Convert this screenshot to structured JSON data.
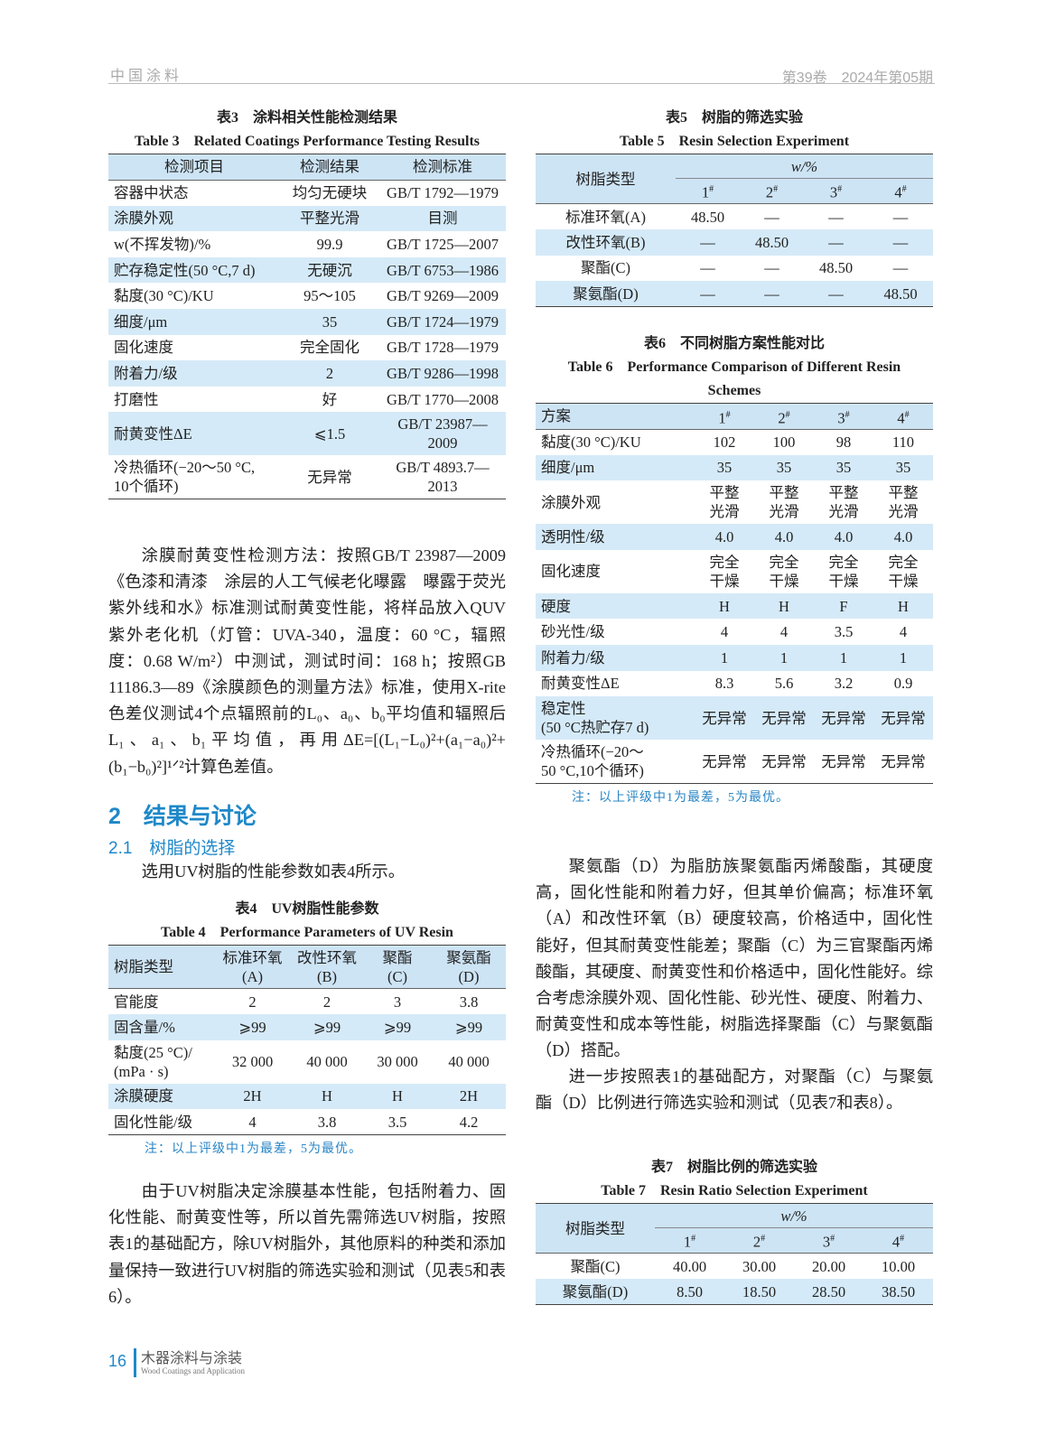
{
  "header": {
    "journal": "中国涂料",
    "issue": "第39卷　2024年第05期"
  },
  "table3": {
    "caption_cn": "表3　涂料相关性能检测结果",
    "caption_en": "Table 3　Related Coatings Performance Testing Results",
    "columns": [
      "检测项目",
      "检测结果",
      "检测标准"
    ],
    "rows": [
      [
        "容器中状态",
        "均匀无硬块",
        "GB/T 1792—1979"
      ],
      [
        "涂膜外观",
        "平整光滑",
        "目测"
      ],
      [
        "w(不挥发物)/%",
        "99.9",
        "GB/T 1725—2007"
      ],
      [
        "贮存稳定性(50 °C,7 d)",
        "无硬沉",
        "GB/T 6753—1986"
      ],
      [
        "黏度(30 °C)/KU",
        "95～105",
        "GB/T 9269—2009"
      ],
      [
        "细度/μm",
        "35",
        "GB/T 1724—1979"
      ],
      [
        "固化速度",
        "完全固化",
        "GB/T 1728—1979"
      ],
      [
        "附着力/级",
        "2",
        "GB/T 9286—1998"
      ],
      [
        "打磨性",
        "好",
        "GB/T 1770—2008"
      ],
      [
        "耐黄变性ΔE",
        "⩽1.5",
        "GB/T 23987—\n2009"
      ],
      [
        "冷热循环(−20～50 °C,\n10个循环)",
        "无异常",
        "GB/T 4893.7—\n2013"
      ]
    ]
  },
  "para1": "涂膜耐黄变性检测方法：按照GB/T 23987—2009《色漆和清漆　涂层的人工气候老化曝露　曝露于荧光紫外线和水》标准测试耐黄变性能，将样品放入QUV紫外老化机（灯管：UVA-340，温度：60 °C，辐照度：0.68 W/m²）中测试，测试时间：168 h；按照GB 11186.3—89《涂膜颜色的测量方法》标准，使用X-rite色差仪测试4个点辐照前的L₀、a₀、b₀平均值和辐照后L₁、a₁、b₁平均值，再用ΔE=[(L₁−L₀)²+(a₁−a₀)²+(b₁−b₀)²]¹ᐟ²计算色差值。",
  "section2": {
    "title": "2　结果与讨论",
    "sub": "2.1　树脂的选择",
    "intro": "选用UV树脂的性能参数如表4所示。"
  },
  "table4": {
    "caption_cn": "表4　UV树脂性能参数",
    "caption_en": "Table 4　Performance Parameters of UV Resin",
    "columns": [
      "树脂类型",
      "标准环氧\n(A)",
      "改性环氧\n(B)",
      "聚酯\n(C)",
      "聚氨酯\n(D)"
    ],
    "rows": [
      [
        "官能度",
        "2",
        "2",
        "3",
        "3.8"
      ],
      [
        "固含量/%",
        "⩾99",
        "⩾99",
        "⩾99",
        "⩾99"
      ],
      [
        "黏度(25 °C)/\n(mPa · s)",
        "32 000",
        "40 000",
        "30 000",
        "40 000"
      ],
      [
        "涂膜硬度",
        "2H",
        "H",
        "H",
        "2H"
      ],
      [
        "固化性能/级",
        "4",
        "3.8",
        "3.5",
        "4.2"
      ]
    ],
    "note": "注：以上评级中1为最差，5为最优。"
  },
  "para2": "由于UV树脂决定涂膜基本性能，包括附着力、固化性能、耐黄变性等，所以首先需筛选UV树脂，按照表1的基础配方，除UV树脂外，其他原料的种类和添加量保持一致进行UV树脂的筛选实验和测试（见表5和表6）。",
  "table5": {
    "caption_cn": "表5　树脂的筛选实验",
    "caption_en": "Table 5　Resin Selection Experiment",
    "col_head": "树脂类型",
    "unit": "w/%",
    "schemes": [
      "1#",
      "2#",
      "3#",
      "4#"
    ],
    "rows": [
      [
        "标准环氧(A)",
        "48.50",
        "—",
        "—",
        "—"
      ],
      [
        "改性环氧(B)",
        "—",
        "48.50",
        "—",
        "—"
      ],
      [
        "聚酯(C)",
        "—",
        "—",
        "48.50",
        "—"
      ],
      [
        "聚氨酯(D)",
        "—",
        "—",
        "—",
        "48.50"
      ]
    ]
  },
  "table6": {
    "caption_cn": "表6　不同树脂方案性能对比",
    "caption_en": "Table 6　Performance Comparison of Different Resin Schemes",
    "columns": [
      "方案",
      "1#",
      "2#",
      "3#",
      "4#"
    ],
    "rows": [
      [
        "黏度(30 °C)/KU",
        "102",
        "100",
        "98",
        "110"
      ],
      [
        "细度/μm",
        "35",
        "35",
        "35",
        "35"
      ],
      [
        "涂膜外观",
        "平整\n光滑",
        "平整\n光滑",
        "平整\n光滑",
        "平整\n光滑"
      ],
      [
        "透明性/级",
        "4.0",
        "4.0",
        "4.0",
        "4.0"
      ],
      [
        "固化速度",
        "完全\n干燥",
        "完全\n干燥",
        "完全\n干燥",
        "完全\n干燥"
      ],
      [
        "硬度",
        "H",
        "H",
        "F",
        "H"
      ],
      [
        "砂光性/级",
        "4",
        "4",
        "3.5",
        "4"
      ],
      [
        "附着力/级",
        "1",
        "1",
        "1",
        "1"
      ],
      [
        "耐黄变性ΔE",
        "8.3",
        "5.6",
        "3.2",
        "0.9"
      ],
      [
        "稳定性\n(50 °C热贮存7 d)",
        "无异常",
        "无异常",
        "无异常",
        "无异常"
      ],
      [
        "冷热循环(−20～\n50 °C,10个循环)",
        "无异常",
        "无异常",
        "无异常",
        "无异常"
      ]
    ],
    "note": "注：以上评级中1为最差，5为最优。"
  },
  "para3": "聚氨酯（D）为脂肪族聚氨酯丙烯酸酯，其硬度高，固化性能和附着力好，但其单价偏高；标准环氧（A）和改性环氧（B）硬度较高，价格适中，固化性能好，但其耐黄变性能差；聚酯（C）为三官聚酯丙烯酸酯，其硬度、耐黄变性和价格适中，固化性能好。综合考虑涂膜外观、固化性能、砂光性、硬度、附着力、耐黄变性和成本等性能，树脂选择聚酯（C）与聚氨酯（D）搭配。",
  "para4": "进一步按照表1的基础配方，对聚酯（C）与聚氨酯（D）比例进行筛选实验和测试（见表7和表8）。",
  "table7": {
    "caption_cn": "表7　树脂比例的筛选实验",
    "caption_en": "Table 7　Resin Ratio Selection Experiment",
    "col_head": "树脂类型",
    "unit": "w/%",
    "schemes": [
      "1#",
      "2#",
      "3#",
      "4#"
    ],
    "rows": [
      [
        "聚酯(C)",
        "40.00",
        "30.00",
        "20.00",
        "10.00"
      ],
      [
        "聚氨酯(D)",
        "8.50",
        "18.50",
        "28.50",
        "38.50"
      ]
    ]
  },
  "footer": {
    "page": "16",
    "journal_cn": "木器涂料与涂装",
    "journal_en": "Wood Coatings and Application"
  }
}
